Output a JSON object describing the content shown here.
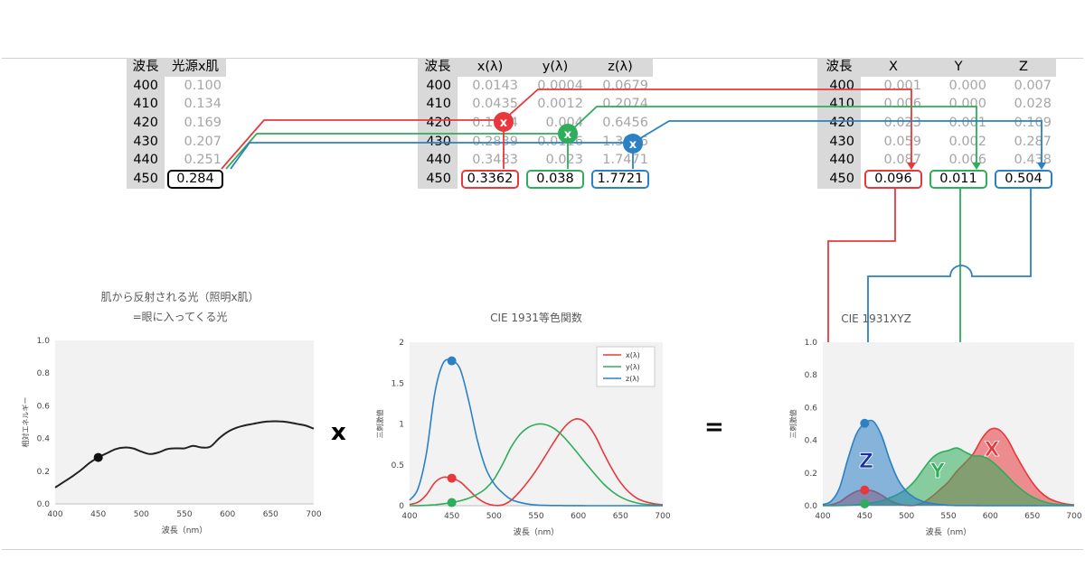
{
  "table1": {
    "headers": [
      "波長",
      "光源x肌"
    ],
    "rows": [
      {
        "wl": "400",
        "v": "0.100"
      },
      {
        "wl": "410",
        "v": "0.134"
      },
      {
        "wl": "420",
        "v": "0.169"
      },
      {
        "wl": "430",
        "v": "0.207"
      },
      {
        "wl": "440",
        "v": "0.251"
      },
      {
        "wl": "450",
        "v": "0.284"
      }
    ]
  },
  "table2": {
    "headers": [
      "波長",
      "x(λ)",
      "y(λ)",
      "z(λ)"
    ],
    "rows": [
      {
        "wl": "400",
        "x": "0.0143",
        "y": "0.0004",
        "z": "0.0679"
      },
      {
        "wl": "410",
        "x": "0.0435",
        "y": "0.0012",
        "z": "0.2074"
      },
      {
        "wl": "420",
        "x": "0.1344",
        "y": "0.004",
        "z": "0.6456"
      },
      {
        "wl": "430",
        "x": "0.2839",
        "y": "0.0116",
        "z": "1.3856"
      },
      {
        "wl": "440",
        "x": "0.3483",
        "y": "0.023",
        "z": "1.7471"
      },
      {
        "wl": "450",
        "x": "0.3362",
        "y": "0.038",
        "z": "1.7721"
      }
    ]
  },
  "table3": {
    "headers": [
      "波長",
      "X",
      "Y",
      "Z"
    ],
    "rows": [
      {
        "wl": "400",
        "x": "0.001",
        "y": "0.000",
        "z": "0.007"
      },
      {
        "wl": "410",
        "x": "0.006",
        "y": "0.000",
        "z": "0.028"
      },
      {
        "wl": "420",
        "x": "0.023",
        "y": "0.001",
        "z": "0.109"
      },
      {
        "wl": "430",
        "x": "0.059",
        "y": "0.002",
        "z": "0.287"
      },
      {
        "wl": "440",
        "x": "0.087",
        "y": "0.006",
        "z": "0.438"
      },
      {
        "wl": "450",
        "x": "0.096",
        "y": "0.011",
        "z": "0.504"
      }
    ]
  },
  "operators": {
    "multiply": "x",
    "equals": "="
  },
  "badges": {
    "mult": "x"
  },
  "colors": {
    "x": "#e8383d",
    "y": "#2ead5a",
    "z": "#2c80c4",
    "line": "#222222"
  },
  "chart_data": [
    {
      "type": "line",
      "title": "肌から反射される光（照明x肌）",
      "subtitle": "=眼に入ってくる光",
      "xlabel": "波長（nm）",
      "ylabel": "相対エネルギー",
      "xlim": [
        400,
        700
      ],
      "ylim": [
        0,
        1.0
      ],
      "xticks": [
        "400",
        "450",
        "500",
        "550",
        "600",
        "650",
        "700"
      ],
      "yticks": [
        "0.0",
        "0.2",
        "0.4",
        "0.6",
        "0.8",
        "1.0"
      ],
      "grid": false,
      "series": [
        {
          "x": [
            400,
            410,
            420,
            430,
            440,
            450,
            460,
            470,
            480,
            490,
            500,
            510,
            520,
            530,
            540,
            550,
            560,
            570,
            580,
            590,
            600,
            610,
            620,
            630,
            640,
            650,
            660,
            670,
            680,
            690,
            700
          ],
          "y": [
            0.1,
            0.134,
            0.169,
            0.207,
            0.251,
            0.284,
            0.31,
            0.335,
            0.345,
            0.34,
            0.32,
            0.305,
            0.315,
            0.335,
            0.34,
            0.34,
            0.355,
            0.345,
            0.35,
            0.4,
            0.44,
            0.465,
            0.48,
            0.49,
            0.5,
            0.505,
            0.505,
            0.5,
            0.49,
            0.48,
            0.46
          ]
        }
      ],
      "marker": {
        "x": 450,
        "y": 0.284
      }
    },
    {
      "type": "line",
      "title": "CIE 1931等色関数",
      "xlabel": "波長（nm）",
      "ylabel": "三刺激値",
      "xlim": [
        400,
        700
      ],
      "ylim": [
        0,
        2
      ],
      "xticks": [
        "400",
        "450",
        "500",
        "550",
        "600",
        "650",
        "700"
      ],
      "yticks": [
        "0",
        "0.5",
        "1",
        "1.5",
        "2"
      ],
      "legend": "top-right",
      "series": [
        {
          "name": "x(λ)",
          "color": "#e8383d",
          "x": [
            400,
            410,
            420,
            430,
            440,
            450,
            460,
            470,
            480,
            490,
            500,
            510,
            520,
            530,
            540,
            550,
            560,
            570,
            580,
            590,
            600,
            610,
            620,
            630,
            640,
            650,
            660,
            670,
            680,
            690,
            700
          ],
          "y": [
            0.0143,
            0.0435,
            0.1344,
            0.2839,
            0.3483,
            0.3362,
            0.2908,
            0.1954,
            0.0956,
            0.032,
            0.0049,
            0.0093,
            0.0633,
            0.1655,
            0.2904,
            0.4334,
            0.5945,
            0.7621,
            0.9163,
            1.0263,
            1.0622,
            1.0026,
            0.8544,
            0.6424,
            0.4479,
            0.2835,
            0.1649,
            0.0874,
            0.0468,
            0.0227,
            0.0114
          ]
        },
        {
          "name": "y(λ)",
          "color": "#2ead5a",
          "x": [
            400,
            410,
            420,
            430,
            440,
            450,
            460,
            470,
            480,
            490,
            500,
            510,
            520,
            530,
            540,
            550,
            560,
            570,
            580,
            590,
            600,
            610,
            620,
            630,
            640,
            650,
            660,
            670,
            680,
            690,
            700
          ],
          "y": [
            0.0004,
            0.0012,
            0.004,
            0.0116,
            0.023,
            0.038,
            0.06,
            0.091,
            0.139,
            0.208,
            0.323,
            0.503,
            0.71,
            0.862,
            0.954,
            0.995,
            0.995,
            0.952,
            0.87,
            0.757,
            0.631,
            0.503,
            0.381,
            0.265,
            0.175,
            0.107,
            0.061,
            0.032,
            0.017,
            0.0082,
            0.0041
          ]
        },
        {
          "name": "z(λ)",
          "color": "#2c80c4",
          "x": [
            400,
            410,
            420,
            430,
            440,
            450,
            460,
            470,
            480,
            490,
            500,
            510,
            520,
            530,
            540,
            550,
            560,
            570,
            580,
            590,
            600,
            610,
            620,
            630,
            640,
            650,
            660,
            670,
            680,
            690,
            700
          ],
          "y": [
            0.0679,
            0.2074,
            0.6456,
            1.3856,
            1.7471,
            1.7721,
            1.6692,
            1.2876,
            0.813,
            0.4652,
            0.272,
            0.1582,
            0.0782,
            0.0422,
            0.0203,
            0.0087,
            0.0039,
            0.0021,
            0.0017,
            0.0011,
            0.0008,
            0.0003,
            0.0002,
            0,
            0,
            0,
            0,
            0,
            0,
            0,
            0
          ]
        }
      ],
      "markers": [
        {
          "series": "x(λ)",
          "x": 450,
          "y": 0.3362
        },
        {
          "series": "y(λ)",
          "x": 450,
          "y": 0.038
        },
        {
          "series": "z(λ)",
          "x": 450,
          "y": 1.7721
        }
      ]
    },
    {
      "type": "area",
      "title": "CIE 1931XYZ",
      "xlabel": "波長（nm）",
      "ylabel": "三刺激値",
      "xlim": [
        400,
        700
      ],
      "ylim": [
        0,
        1.0
      ],
      "xticks": [
        "400",
        "450",
        "500",
        "550",
        "600",
        "650",
        "700"
      ],
      "yticks": [
        "0.0",
        "0.2",
        "0.4",
        "0.6",
        "0.8",
        "1.0"
      ],
      "series": [
        {
          "name": "X",
          "color": "#e8383d",
          "label": "X",
          "x": [
            400,
            410,
            420,
            430,
            440,
            450,
            460,
            470,
            480,
            490,
            500,
            510,
            520,
            530,
            540,
            550,
            560,
            570,
            580,
            590,
            600,
            610,
            620,
            630,
            640,
            650,
            660,
            670,
            680,
            690,
            700
          ],
          "y": [
            0.001,
            0.006,
            0.023,
            0.059,
            0.087,
            0.096,
            0.09,
            0.065,
            0.033,
            0.011,
            0.002,
            0.003,
            0.02,
            0.055,
            0.099,
            0.147,
            0.211,
            0.263,
            0.321,
            0.411,
            0.467,
            0.466,
            0.41,
            0.315,
            0.224,
            0.143,
            0.083,
            0.044,
            0.023,
            0.011,
            0.005
          ]
        },
        {
          "name": "Y",
          "color": "#2ead5a",
          "label": "Y",
          "x": [
            400,
            410,
            420,
            430,
            440,
            450,
            460,
            470,
            480,
            490,
            500,
            510,
            520,
            530,
            540,
            550,
            560,
            570,
            580,
            590,
            600,
            610,
            620,
            630,
            640,
            650,
            660,
            670,
            680,
            690,
            700
          ],
          "y": [
            0.0,
            0.0,
            0.001,
            0.002,
            0.006,
            0.011,
            0.019,
            0.03,
            0.048,
            0.071,
            0.103,
            0.153,
            0.224,
            0.289,
            0.324,
            0.338,
            0.353,
            0.328,
            0.305,
            0.303,
            0.278,
            0.234,
            0.183,
            0.13,
            0.088,
            0.054,
            0.031,
            0.016,
            0.008,
            0.004,
            0.002
          ]
        },
        {
          "name": "Z",
          "color": "#2c80c4",
          "label": "Z",
          "x": [
            400,
            410,
            420,
            430,
            440,
            450,
            460,
            470,
            480,
            490,
            500,
            510,
            520,
            530,
            540,
            550,
            560,
            570,
            580,
            590,
            600,
            610,
            620,
            630,
            640,
            650,
            660,
            670,
            680,
            690,
            700
          ],
          "y": [
            0.007,
            0.028,
            0.109,
            0.287,
            0.438,
            0.504,
            0.517,
            0.431,
            0.28,
            0.158,
            0.087,
            0.048,
            0.025,
            0.014,
            0.007,
            0.003,
            0.001,
            0.001,
            0.001,
            0,
            0,
            0,
            0,
            0,
            0,
            0,
            0,
            0,
            0,
            0,
            0
          ]
        }
      ],
      "markers": [
        {
          "series": "Z",
          "x": 450,
          "y": 0.504
        },
        {
          "series": "X",
          "x": 450,
          "y": 0.096
        },
        {
          "series": "Y",
          "x": 450,
          "y": 0.011
        }
      ]
    }
  ]
}
